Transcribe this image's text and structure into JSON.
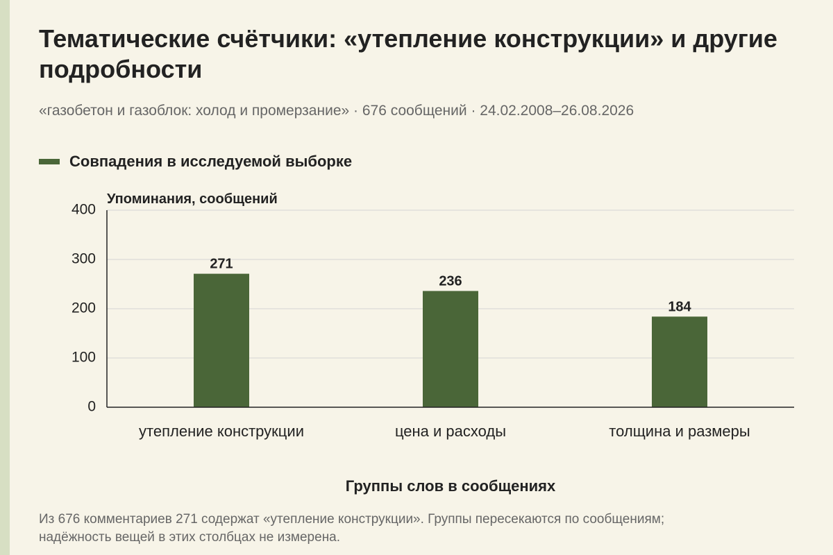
{
  "page": {
    "title": "Тематические счётчики: «утепление конструкции» и другие подробности",
    "subtitle": "«газобетон и газоблок: холод и промерзание» · 676 сообщений · 24.02.2008–26.08.2026",
    "footnote": "Из 676 комментариев 271 содержат «утепление конструкции». Группы пересекаются по сообщениям; надёжность вещей в этих столбцах не измерена."
  },
  "colors": {
    "background": "#f7f4e8",
    "side_strip": "#d7dfc3",
    "bar": "#4a6638",
    "grid": "#d5d5d5",
    "axis": "#222222"
  },
  "chart_data": {
    "type": "bar",
    "categories": [
      "утепление конструкции",
      "цена и расходы",
      "толщина и размеры"
    ],
    "series": [
      {
        "name": "Совпадения в исследуемой выборке",
        "values": [
          271,
          236,
          184
        ]
      }
    ],
    "xlabel": "Группы слов в сообщениях",
    "ylabel": "Упоминания, сообщений",
    "ylim": [
      0,
      400
    ],
    "yticks": [
      0,
      100,
      200,
      300,
      400
    ],
    "data_labels": [
      "271",
      "236",
      "184"
    ],
    "grid": true,
    "legend": "top-left"
  }
}
